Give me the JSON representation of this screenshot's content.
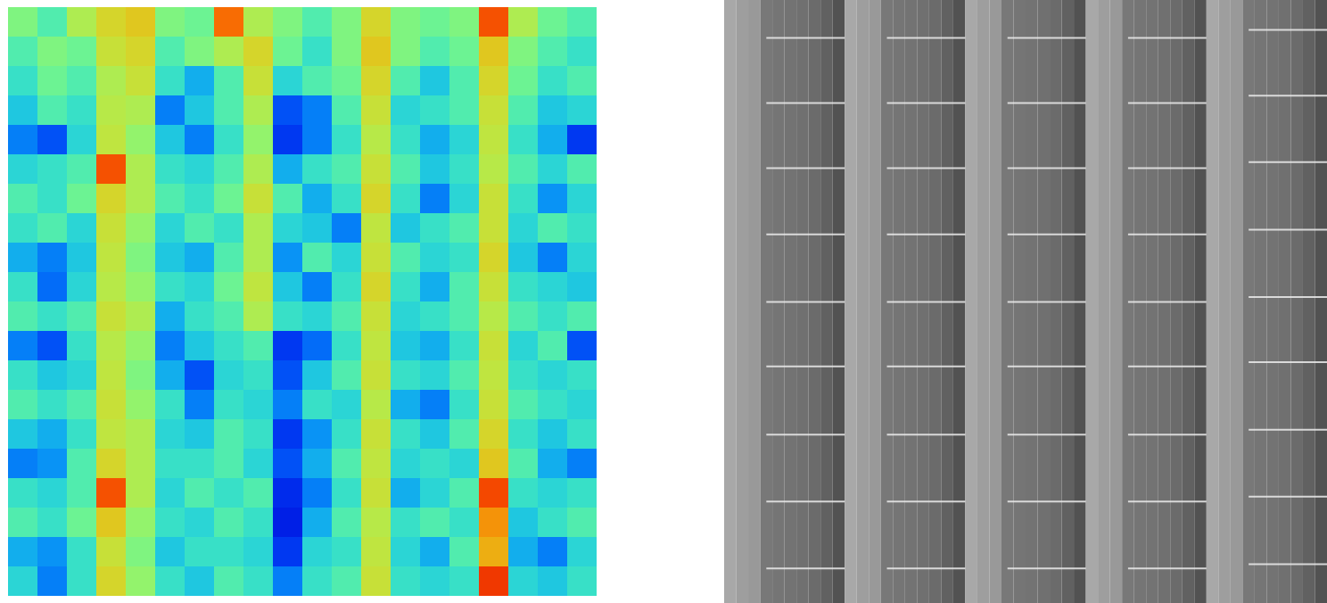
{
  "chart_data": [
    {
      "type": "heatmap",
      "tick_labels": false,
      "zlim": [
        0,
        1
      ],
      "cells": [
        [
          0.5,
          0.45,
          0.55,
          0.6,
          0.62,
          0.5,
          0.48,
          0.72,
          0.55,
          0.5,
          0.45,
          0.5,
          0.6,
          0.5,
          0.48,
          0.5,
          0.75,
          0.55,
          0.48,
          0.45
        ],
        [
          0.45,
          0.5,
          0.48,
          0.58,
          0.6,
          0.45,
          0.5,
          0.55,
          0.6,
          0.48,
          0.42,
          0.5,
          0.62,
          0.5,
          0.45,
          0.48,
          0.62,
          0.5,
          0.45,
          0.42
        ],
        [
          0.42,
          0.48,
          0.45,
          0.55,
          0.58,
          0.42,
          0.35,
          0.45,
          0.58,
          0.4,
          0.45,
          0.48,
          0.6,
          0.45,
          0.38,
          0.45,
          0.6,
          0.48,
          0.42,
          0.45
        ],
        [
          0.38,
          0.45,
          0.42,
          0.56,
          0.55,
          0.3,
          0.38,
          0.45,
          0.55,
          0.25,
          0.3,
          0.45,
          0.58,
          0.4,
          0.42,
          0.45,
          0.58,
          0.45,
          0.38,
          0.4
        ],
        [
          0.3,
          0.25,
          0.4,
          0.57,
          0.52,
          0.38,
          0.3,
          0.42,
          0.52,
          0.22,
          0.3,
          0.42,
          0.56,
          0.42,
          0.35,
          0.4,
          0.57,
          0.42,
          0.35,
          0.22
        ],
        [
          0.4,
          0.42,
          0.45,
          0.75,
          0.55,
          0.42,
          0.4,
          0.45,
          0.55,
          0.35,
          0.42,
          0.45,
          0.58,
          0.45,
          0.38,
          0.42,
          0.56,
          0.45,
          0.4,
          0.45
        ],
        [
          0.45,
          0.42,
          0.48,
          0.6,
          0.55,
          0.45,
          0.42,
          0.48,
          0.58,
          0.45,
          0.35,
          0.42,
          0.6,
          0.42,
          0.3,
          0.4,
          0.58,
          0.42,
          0.32,
          0.4
        ],
        [
          0.42,
          0.45,
          0.4,
          0.58,
          0.52,
          0.4,
          0.45,
          0.42,
          0.55,
          0.4,
          0.38,
          0.3,
          0.57,
          0.38,
          0.42,
          0.45,
          0.58,
          0.4,
          0.45,
          0.42
        ],
        [
          0.35,
          0.3,
          0.38,
          0.57,
          0.5,
          0.38,
          0.35,
          0.45,
          0.55,
          0.32,
          0.45,
          0.4,
          0.58,
          0.45,
          0.4,
          0.42,
          0.6,
          0.38,
          0.3,
          0.4
        ],
        [
          0.42,
          0.28,
          0.4,
          0.56,
          0.52,
          0.42,
          0.4,
          0.48,
          0.57,
          0.38,
          0.3,
          0.42,
          0.6,
          0.42,
          0.35,
          0.45,
          0.58,
          0.42,
          0.4,
          0.38
        ],
        [
          0.45,
          0.42,
          0.45,
          0.58,
          0.55,
          0.35,
          0.42,
          0.45,
          0.55,
          0.42,
          0.4,
          0.45,
          0.58,
          0.4,
          0.42,
          0.45,
          0.56,
          0.45,
          0.42,
          0.45
        ],
        [
          0.3,
          0.25,
          0.42,
          0.56,
          0.52,
          0.3,
          0.38,
          0.42,
          0.45,
          0.22,
          0.28,
          0.42,
          0.57,
          0.38,
          0.35,
          0.42,
          0.58,
          0.4,
          0.45,
          0.25
        ],
        [
          0.42,
          0.38,
          0.4,
          0.57,
          0.5,
          0.35,
          0.25,
          0.4,
          0.42,
          0.25,
          0.38,
          0.45,
          0.58,
          0.42,
          0.4,
          0.45,
          0.57,
          0.42,
          0.4,
          0.42
        ],
        [
          0.45,
          0.42,
          0.45,
          0.58,
          0.52,
          0.42,
          0.3,
          0.42,
          0.4,
          0.3,
          0.42,
          0.4,
          0.56,
          0.35,
          0.3,
          0.42,
          0.58,
          0.45,
          0.42,
          0.4
        ],
        [
          0.38,
          0.35,
          0.42,
          0.57,
          0.55,
          0.4,
          0.38,
          0.45,
          0.42,
          0.22,
          0.32,
          0.42,
          0.58,
          0.42,
          0.38,
          0.45,
          0.6,
          0.42,
          0.38,
          0.42
        ],
        [
          0.3,
          0.32,
          0.45,
          0.6,
          0.55,
          0.42,
          0.42,
          0.45,
          0.4,
          0.25,
          0.35,
          0.45,
          0.57,
          0.4,
          0.42,
          0.4,
          0.62,
          0.45,
          0.35,
          0.3
        ],
        [
          0.42,
          0.4,
          0.45,
          0.75,
          0.55,
          0.4,
          0.45,
          0.42,
          0.45,
          0.2,
          0.3,
          0.42,
          0.58,
          0.35,
          0.4,
          0.45,
          0.76,
          0.42,
          0.4,
          0.42
        ],
        [
          0.45,
          0.42,
          0.48,
          0.62,
          0.52,
          0.42,
          0.4,
          0.45,
          0.42,
          0.18,
          0.35,
          0.45,
          0.56,
          0.42,
          0.45,
          0.42,
          0.68,
          0.38,
          0.42,
          0.45
        ],
        [
          0.35,
          0.32,
          0.42,
          0.58,
          0.5,
          0.38,
          0.42,
          0.42,
          0.4,
          0.22,
          0.4,
          0.42,
          0.57,
          0.4,
          0.35,
          0.45,
          0.65,
          0.35,
          0.3,
          0.4
        ],
        [
          0.4,
          0.3,
          0.42,
          0.6,
          0.52,
          0.42,
          0.38,
          0.45,
          0.42,
          0.3,
          0.42,
          0.45,
          0.58,
          0.42,
          0.4,
          0.42,
          0.78,
          0.4,
          0.38,
          0.42
        ]
      ]
    },
    {
      "type": "heatmap",
      "tick_labels": false,
      "zlim": [
        0,
        1
      ],
      "xlim": [
        0,
        5
      ],
      "ylim": [
        0,
        100
      ],
      "bins": [
        0,
        0.1,
        0.2,
        0.3,
        0.4,
        0.5,
        0.6,
        0.7,
        0.8,
        0.9,
        1,
        1.1,
        1.2,
        1.3,
        1.4,
        1.5,
        1.6,
        1.7,
        1.8,
        1.9,
        2,
        2.1,
        2.2,
        2.3,
        2.4,
        2.5,
        2.6,
        2.7,
        2.8,
        2.9,
        3,
        3.1,
        3.2,
        3.3,
        3.4,
        3.5,
        3.6,
        3.7,
        3.8,
        3.9,
        4,
        4.1,
        4.2,
        4.3,
        4.4,
        4.5,
        4.6,
        4.7,
        4.8,
        4.9,
        5
      ],
      "values": [
        0.66,
        0.62,
        0.6,
        0.47,
        0.46,
        0.45,
        0.44,
        0.42,
        0.38,
        0.32,
        0.66,
        0.62,
        0.6,
        0.47,
        0.46,
        0.45,
        0.44,
        0.42,
        0.38,
        0.32,
        0.66,
        0.62,
        0.6,
        0.47,
        0.46,
        0.45,
        0.44,
        0.42,
        0.38,
        0.32,
        0.66,
        0.62,
        0.6,
        0.47,
        0.46,
        0.45,
        0.44,
        0.42,
        0.38,
        0.32,
        0.66,
        0.62,
        0.6,
        0.47,
        0.46,
        0.45,
        0.44,
        0.42,
        0.38,
        0.32
      ],
      "streaks": [
        {
          "x1": 0.35,
          "x2": 1,
          "y": [
            6.2,
            17,
            27.8,
            38.8,
            50,
            60.7,
            72,
            83.1,
            94.2
          ]
        },
        {
          "x1": 1.35,
          "x2": 2,
          "y": [
            6.2,
            17,
            27.8,
            38.8,
            50,
            60.7,
            72,
            83.1,
            94.2
          ]
        },
        {
          "x1": 2.35,
          "x2": 3,
          "y": [
            6.2,
            17,
            27.8,
            38.8,
            50,
            60.7,
            72,
            83.1,
            94.2
          ]
        },
        {
          "x1": 3.35,
          "x2": 4,
          "y": [
            6.2,
            17,
            27.8,
            38.8,
            50,
            60.7,
            72,
            83.1,
            94.2
          ]
        },
        {
          "x1": 4.35,
          "x2": 5,
          "y": [
            4.9,
            15.8,
            26.8,
            38,
            49.2,
            60,
            71.2,
            82.3,
            93.5
          ]
        }
      ]
    }
  ]
}
